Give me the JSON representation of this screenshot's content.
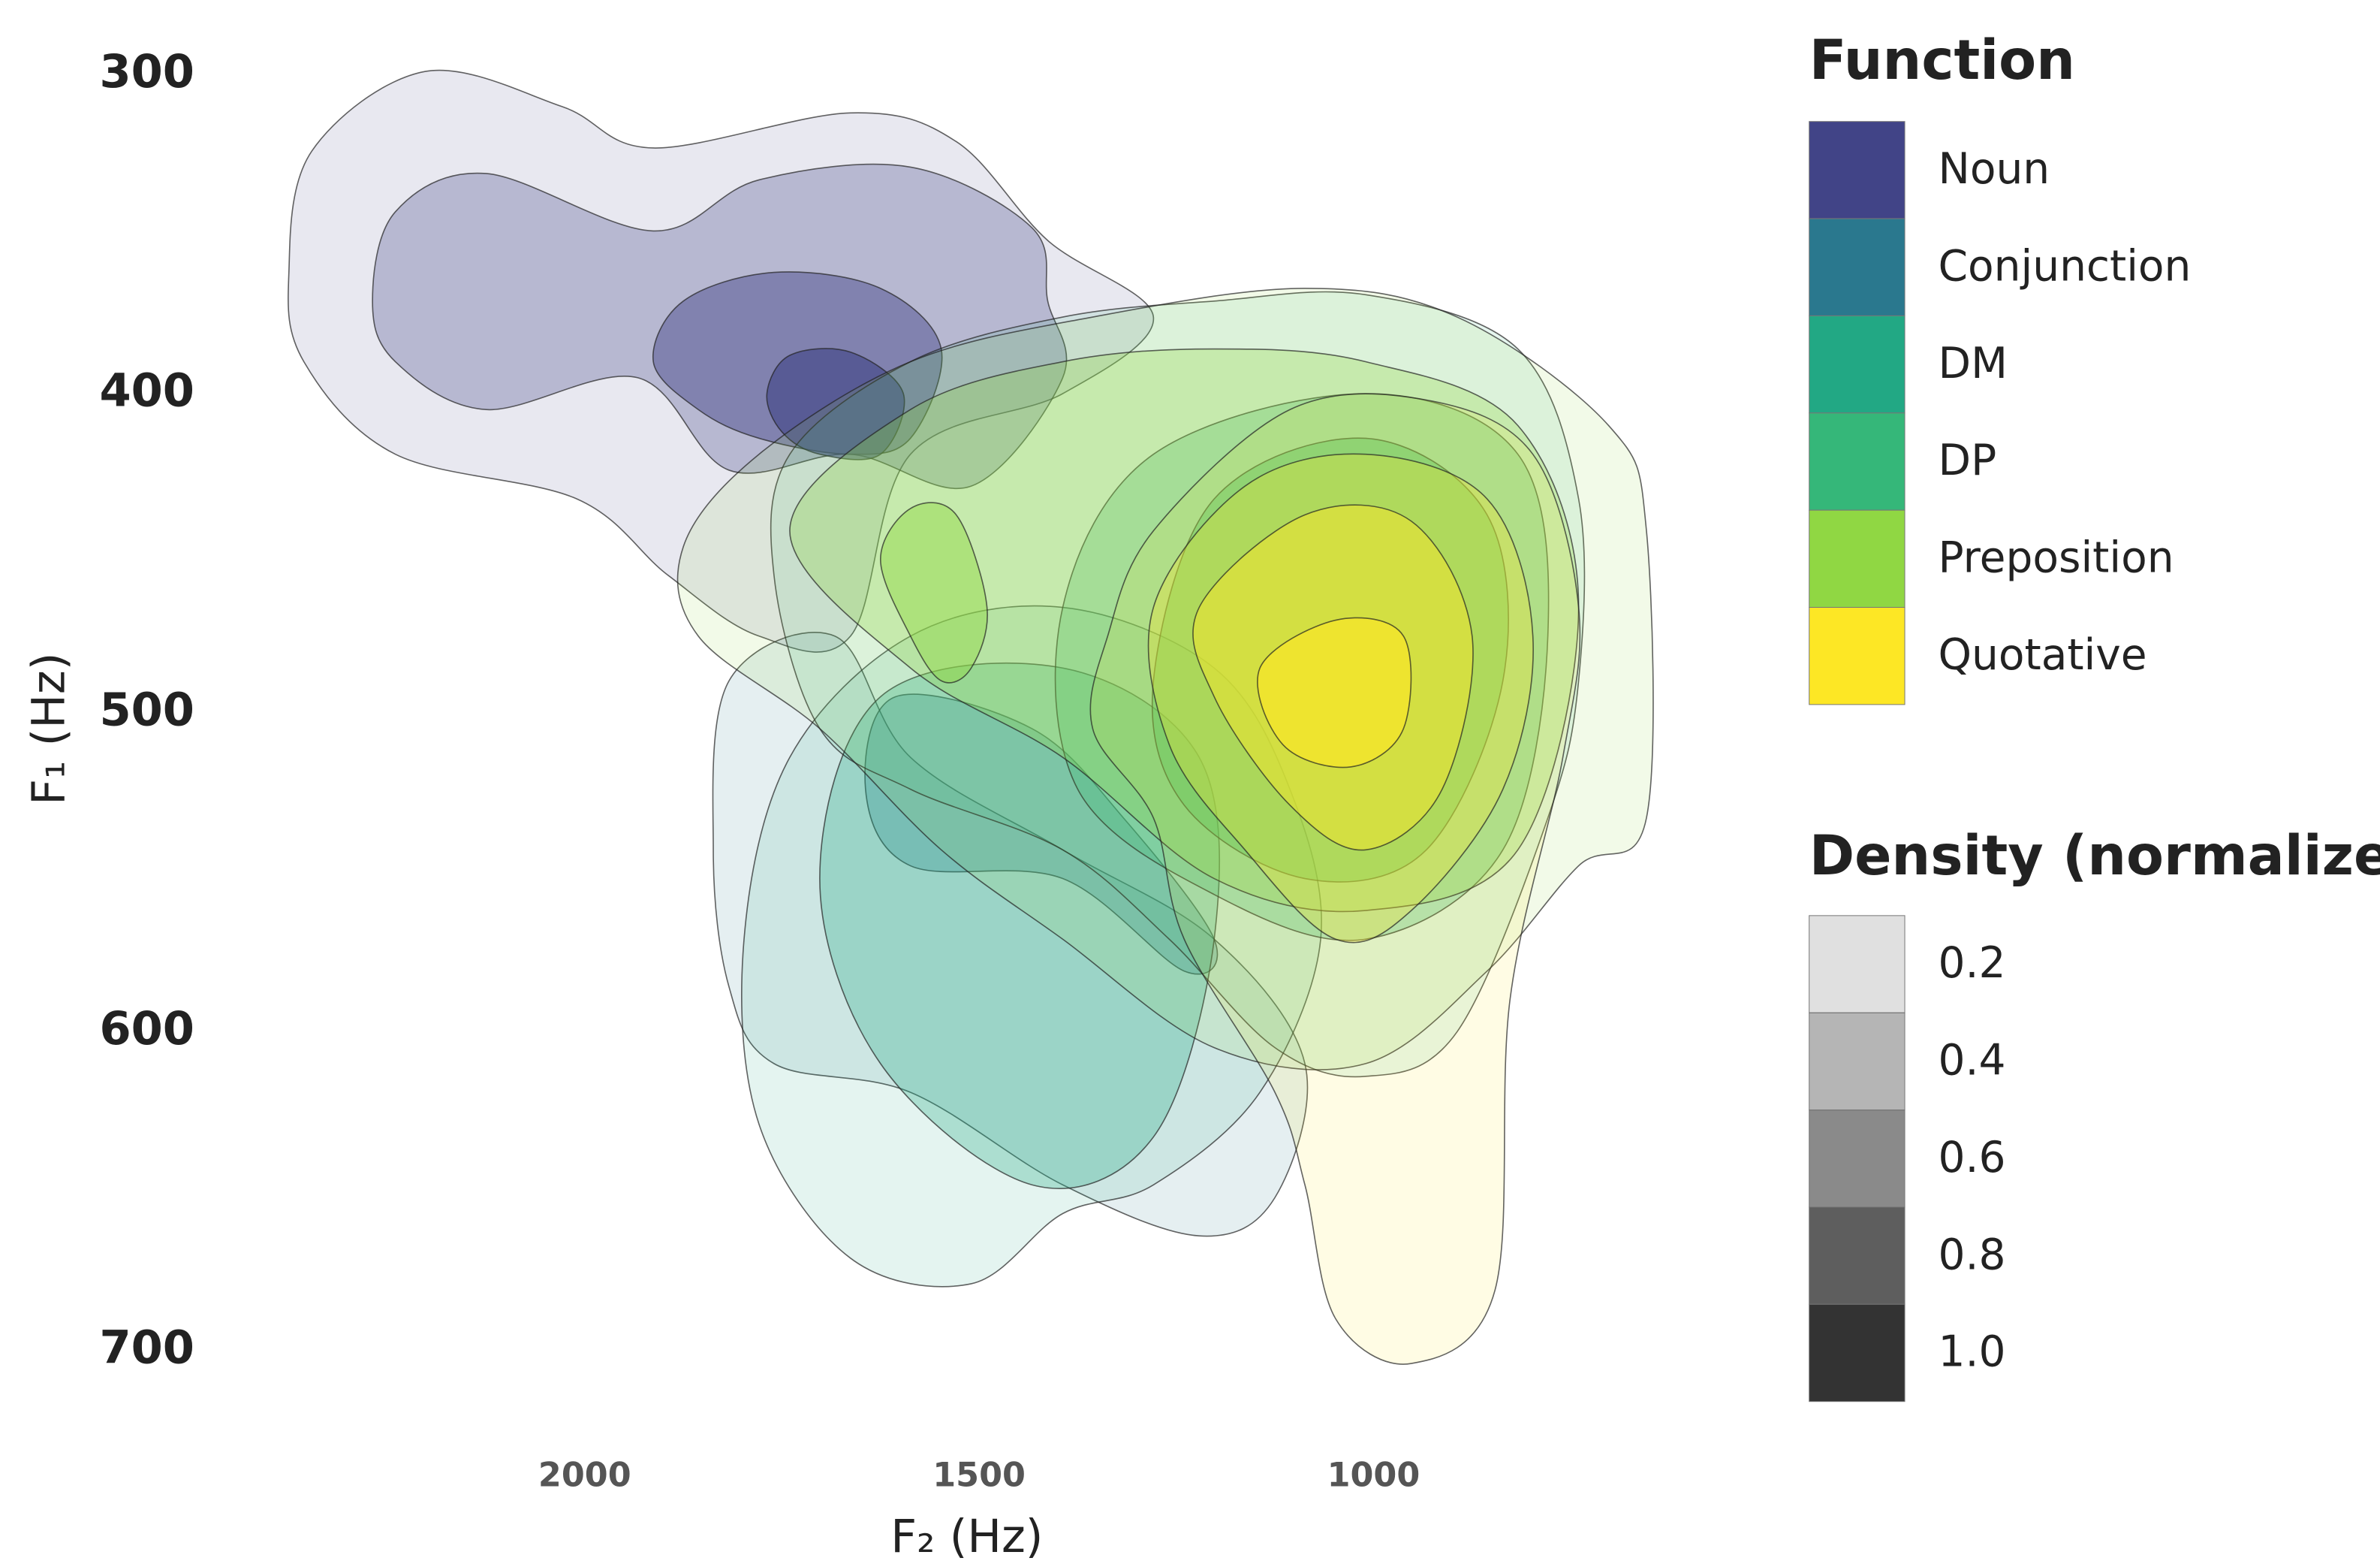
{
  "chart_data": {
    "type": "density_contour",
    "x_label": "F₂ (Hz)",
    "y_label": "F₁ (Hz)",
    "xlim": [
      2462,
      567
    ],
    "ylim": [
      724,
      279
    ],
    "xticks": [
      2000,
      1500,
      1000
    ],
    "x_minor_ticks": [
      2250,
      1750,
      1250,
      750
    ],
    "yticks": [
      300,
      400,
      500,
      600,
      700
    ],
    "y_minor_ticks": [
      350,
      450,
      550,
      650
    ],
    "grid": true,
    "color_legend_title": "Function",
    "density_legend_title": "Density (normalized)",
    "density_levels": [
      0.2,
      0.4,
      0.6,
      0.8,
      1.0
    ],
    "series": [
      {
        "name": "Noun",
        "color": "#414487",
        "contours": [
          {
            "level": 0.2,
            "x": [
              2375,
              2346,
              2202,
              2029,
              1913,
              1663,
              1529,
              1413,
              1279,
              1394,
              1587,
              1663,
              1779,
              1894,
              2010,
              2240,
              2356
            ],
            "y": [
              362,
              324,
              299,
              310,
              323,
              312,
              321,
              352,
              376,
              400,
              419,
              476,
              476,
              457,
              433,
              419,
              390
            ]
          },
          {
            "level": 0.4,
            "x": [
              2269,
              2240,
              2125,
              1913,
              1779,
              1587,
              1433,
              1413,
              1394,
              1510,
              1663,
              1817,
              1933,
              2125,
              2240
            ],
            "y": [
              371,
              343,
              331,
              349,
              333,
              329,
              348,
              371,
              395,
              429,
              419,
              424,
              395,
              405,
              390
            ]
          },
          {
            "level": 0.6,
            "x": [
              1913,
              1875,
              1760,
              1625,
              1548,
              1587,
              1663,
              1779,
              1856
            ],
            "y": [
              390,
              371,
              362,
              367,
              386,
              414,
              419,
              414,
              405
            ]
          },
          {
            "level": 0.8,
            "x": [
              1769,
              1740,
              1663,
              1596,
              1625,
              1702,
              1750
            ],
            "y": [
              400,
              388,
              387,
              400,
              419,
              419,
              412
            ]
          }
        ]
      },
      {
        "name": "Conjunction",
        "color": "#2a788e",
        "contours": [
          {
            "level": 0.2,
            "x": [
              1837,
              1817,
              1683,
              1587,
              1394,
              1202,
              1087,
              1125,
              1221,
              1394,
              1587,
              1760,
              1817
            ],
            "y": [
              543,
              490,
              476,
              514,
              543,
              571,
              610,
              652,
              664,
              648,
              619,
              610,
              586
            ]
          },
          {
            "level": 0.4,
            "x": [
              1644,
              1606,
              1433,
              1317,
              1202,
              1240,
              1394,
              1587
            ],
            "y": [
              524,
              495,
              505,
              533,
              571,
              581,
              552,
              548
            ]
          }
        ]
      },
      {
        "name": "DM",
        "color": "#22a884",
        "contours": [
          {
            "level": 0.2,
            "x": [
              1798,
              1740,
              1587,
              1394,
              1202,
              1106,
              1067,
              1144,
              1279,
              1394,
              1510,
              1663,
              1779
            ],
            "y": [
              571,
              514,
              476,
              467,
              486,
              524,
              571,
              619,
              648,
              657,
              679,
              671,
              629
            ]
          },
          {
            "level": 0.4,
            "x": [
              1702,
              1625,
              1394,
              1221,
              1202,
              1279,
              1433,
              1625
            ],
            "y": [
              552,
              495,
              486,
              514,
              571,
              633,
              648,
              610
            ]
          }
        ]
      },
      {
        "name": "DP",
        "color": "#35b779",
        "contours": [
          {
            "level": 0.2,
            "x": [
              1740,
              1587,
              1394,
              1202,
              1010,
              817,
              740,
              740,
              779,
              894,
              1010,
              1125,
              1259,
              1394,
              1587,
              1702,
              1760
            ],
            "y": [
              419,
              390,
              376,
              371,
              369,
              386,
              433,
              490,
              533,
              600,
              614,
              605,
              571,
              543,
              524,
              505,
              457
            ]
          },
          {
            "level": 0.4,
            "x": [
              1394,
              1279,
              1010,
              817,
              779,
              836,
              1010,
              1202,
              1375
            ],
            "y": [
              467,
              419,
              400,
              419,
              476,
              543,
              571,
              557,
              524
            ]
          },
          {
            "level": 0.6,
            "x": [
              1279,
              1202,
              1010,
              856,
              836,
              933,
              1087,
              1240
            ],
            "y": [
              490,
              433,
              414,
              438,
              490,
              543,
              552,
              529
            ]
          }
        ]
      },
      {
        "name": "Preposition",
        "color": "#90d743",
        "contours": [
          {
            "level": 0.2,
            "x": [
              1875,
              1779,
              1587,
              1356,
              1087,
              894,
              702,
              654,
              654,
              740,
              856,
              1010,
              1202,
              1394,
              1548,
              1702,
              1856
            ],
            "y": [
              448,
              419,
              390,
              376,
              367,
              376,
              410,
              443,
              533,
              548,
              581,
              610,
              605,
              571,
              543,
              505,
              476
            ]
          },
          {
            "level": 0.4,
            "x": [
              1740,
              1587,
              1394,
              1202,
              1010,
              817,
              740,
              817,
              1010,
              1202,
              1394,
              1587
            ],
            "y": [
              443,
              405,
              390,
              386,
              390,
              410,
              467,
              543,
              562,
              552,
              514,
              486
            ]
          },
          {
            "level": 0.6,
            "x": [
              1625,
              1587,
              1529,
              1490,
              1510,
              1548,
              1587
            ],
            "y": [
              452,
              436,
              438,
              467,
              486,
              490,
              476
            ]
          }
        ]
      },
      {
        "name": "Quotative",
        "color": "#fde725",
        "contours": [
          {
            "level": 0.2,
            "x": [
              1337,
              1279,
              1106,
              933,
              798,
              740,
              760,
              827,
              846,
              952,
              1048,
              1087,
              1125,
              1240,
              1279,
              1356
            ],
            "y": [
              476,
              443,
              405,
              402,
              419,
              467,
              514,
              590,
              681,
              704,
              690,
              648,
              619,
              571,
              533,
              505
            ]
          },
          {
            "level": 0.4,
            "x": [
              1279,
              1163,
              1010,
              856,
              798,
              836,
              952,
              1048,
              1163,
              1259
            ],
            "y": [
              467,
              429,
              419,
              433,
              476,
              524,
              562,
              571,
              543,
              510
            ]
          },
          {
            "level": 0.6,
            "x": [
              1221,
              1087,
              952,
              875,
              913,
              1010,
              1106,
              1202
            ],
            "y": [
              467,
              438,
              440,
              476,
              524,
              543,
              529,
              495
            ]
          },
          {
            "level": 0.8,
            "x": [
              1144,
              1048,
              962,
              962,
              1029,
              1115
            ],
            "y": [
              486,
              471,
              476,
              505,
              517,
              510
            ]
          }
        ]
      }
    ]
  }
}
